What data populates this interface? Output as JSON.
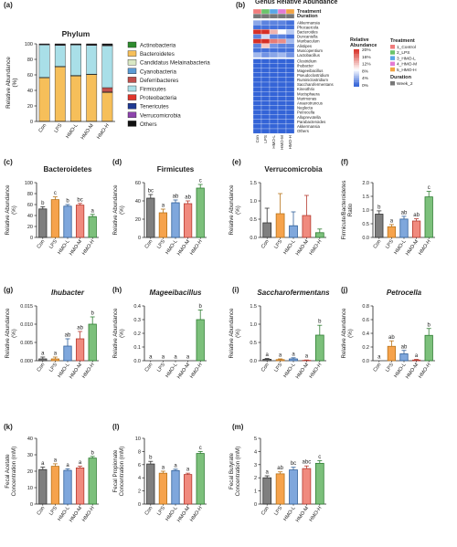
{
  "colors": {
    "groups": [
      "#7f7f7f",
      "#f6a34c",
      "#7fa7dc",
      "#f08a7e",
      "#7cc07b"
    ],
    "edges": [
      "#333333",
      "#b8741b",
      "#2f5f9a",
      "#b53b30",
      "#2e7d32"
    ]
  },
  "chart_data": [
    {
      "panel": "a",
      "id": "a",
      "type": "bar",
      "stacked": true,
      "title": "Phylum",
      "ylabel": "Relative Abundance (%)",
      "categories": [
        "Con",
        "LPS",
        "HMO-L",
        "HMO-M",
        "HMO-H"
      ],
      "ylim": [
        0,
        100
      ],
      "yticks": [
        0,
        20,
        40,
        60,
        80,
        100
      ],
      "series": [
        {
          "name": "Actinobacteria",
          "color": "#2e8b2e",
          "values": [
            0.3,
            0.3,
            0.3,
            0.3,
            0.3
          ]
        },
        {
          "name": "Bacteroidetes",
          "color": "#f6bf5a",
          "values": [
            56,
            70,
            58,
            60,
            37
          ]
        },
        {
          "name": "Candidatus Melainabacteria",
          "color": "#d9e8c4",
          "values": [
            0.3,
            0.3,
            0.3,
            0.3,
            0.3
          ]
        },
        {
          "name": "Cyanobacteria",
          "color": "#5b9bd5",
          "values": [
            0.3,
            0.3,
            0.3,
            0.3,
            0.5
          ]
        },
        {
          "name": "Deferribacteres",
          "color": "#c0504d",
          "values": [
            0.1,
            0.1,
            0.1,
            0.1,
            5.5
          ]
        },
        {
          "name": "Firmicutes",
          "color": "#a9dfe8",
          "values": [
            42,
            27,
            39,
            37,
            54
          ]
        },
        {
          "name": "Proteobacteria",
          "color": "#e0352b",
          "values": [
            0.3,
            0.3,
            0.3,
            0.3,
            0.4
          ]
        },
        {
          "name": "Tenericutes",
          "color": "#1f3a93",
          "values": [
            0.2,
            0.2,
            0.2,
            0.2,
            0.2
          ]
        },
        {
          "name": "Verrucomicrobia",
          "color": "#8e44ad",
          "values": [
            0.4,
            0.6,
            0.3,
            0.6,
            0.2
          ]
        },
        {
          "name": "Others",
          "color": "#111111",
          "values": [
            0.4,
            0.9,
            0.7,
            0.9,
            1.7
          ]
        }
      ]
    },
    {
      "panel": "b",
      "id": "b",
      "type": "heatmap",
      "title": "Genus Relative Abundance",
      "columns": [
        "Con",
        "LPS",
        "HMO-L",
        "HMO-M",
        "HMO-H"
      ],
      "annotation_rows": [
        "Treatment",
        "Duration"
      ],
      "rows_top": [
        "Akkermansia",
        "Phocaeicola",
        "Bacteroides",
        "Duncaniella",
        "Muribaculum",
        "Alistipes",
        "Muscopentium",
        "Lactobacillus"
      ],
      "rows_bottom": [
        "Clostridium",
        "Ihubacter",
        "Mageeibacillus",
        "Pseudoclostridium",
        "Ruminiclostridium",
        "Saccharofermentans",
        "Kineothrix",
        "Mucisphaera",
        "Murimonas",
        "Anaerotruncus",
        "Neglecta",
        "Petrocella",
        "Alloprevotella",
        "Parabacteroides",
        "Akkermansia",
        "Others"
      ],
      "values_top": [
        [
          4,
          2,
          2,
          2,
          1
        ],
        [
          1,
          1,
          1,
          1,
          1
        ],
        [
          22,
          20,
          13,
          9,
          6
        ],
        [
          2,
          7,
          2,
          2,
          1
        ],
        [
          21,
          24,
          16,
          15,
          5
        ],
        [
          2,
          12,
          3,
          2,
          2
        ],
        [
          1,
          1,
          1,
          1,
          1
        ],
        [
          5,
          3,
          4,
          5,
          3
        ]
      ],
      "color_scale": {
        "label": "Relative Abundance",
        "ticks": [
          "20%",
          "16%",
          "12%",
          "8%",
          "4%",
          "0%"
        ],
        "min": 0,
        "max": 20,
        "low": "#2d5fd6",
        "mid": "#ffffff",
        "high": "#d73027"
      },
      "legend_treatment": {
        "title": "Treatment",
        "items": [
          "1_Control",
          "2_LPS",
          "3_HMO-L",
          "4_HMO-M",
          "5_HMO-H"
        ],
        "colors": [
          "#f07c7c",
          "#6bc46b",
          "#5aa7e6",
          "#e47bd3",
          "#f2a444"
        ]
      },
      "legend_duration": {
        "title": "Duration",
        "items": [
          "Week_2"
        ],
        "colors": [
          "#777777"
        ]
      }
    },
    {
      "panel": "c",
      "id": "c",
      "type": "bar",
      "title": "Bacteroidetes",
      "title_italic": false,
      "ylabel": "Relative Abundance (%)",
      "categories": [
        "Con",
        "LPS",
        "HMO-L",
        "HMO-M",
        "HMO-H"
      ],
      "values": [
        52,
        69,
        57,
        59,
        38
      ],
      "errors": [
        4,
        5,
        3,
        3,
        4
      ],
      "letters": [
        "b",
        "c",
        "b",
        "bc",
        "a"
      ],
      "ylim": [
        0,
        100
      ],
      "yticks": [
        0,
        20,
        40,
        60,
        80,
        100
      ],
      "yticklabels": [
        "0",
        "20",
        "40",
        "60",
        "80",
        "100"
      ]
    },
    {
      "panel": "d",
      "id": "d",
      "type": "bar",
      "title": "Firmicutes",
      "title_italic": false,
      "ylabel": "Relative Abundance (%)",
      "categories": [
        "Con",
        "LPS",
        "HMO-L",
        "HMO-M",
        "HMO-H"
      ],
      "values": [
        43,
        27,
        38,
        37,
        54
      ],
      "errors": [
        4,
        4,
        3,
        3,
        4
      ],
      "letters": [
        "bc",
        "a",
        "ab",
        "ab",
        "c"
      ],
      "ylim": [
        0,
        60
      ],
      "yticks": [
        0,
        20,
        40,
        60
      ],
      "yticklabels": [
        "0",
        "20",
        "40",
        "60"
      ]
    },
    {
      "panel": "e",
      "id": "e",
      "type": "bar",
      "title": "Verrucomicrobia",
      "title_italic": false,
      "ylabel": "Relative Abundance (%)",
      "categories": [
        "Con",
        "LPS",
        "HMO-L",
        "HMO-M",
        "HMO-H"
      ],
      "values": [
        0.4,
        0.65,
        0.32,
        0.6,
        0.13
      ],
      "errors": [
        0.4,
        0.55,
        0.38,
        0.55,
        0.1
      ],
      "letters": [
        "",
        "",
        "",
        "",
        ""
      ],
      "ylim": [
        0,
        1.5
      ],
      "yticks": [
        0,
        0.5,
        1.0,
        1.5
      ],
      "yticklabels": [
        "0.0",
        "0.5",
        "1.0",
        "1.5"
      ]
    },
    {
      "panel": "f",
      "id": "f",
      "type": "bar",
      "title": "",
      "title_italic": false,
      "ylabel": "Firmicute/Bacteroidetes Ratio",
      "categories": [
        "Con",
        "LPS",
        "HMO-L",
        "HMO-M",
        "HMO-H"
      ],
      "values": [
        0.85,
        0.39,
        0.67,
        0.6,
        1.48
      ],
      "errors": [
        0.12,
        0.08,
        0.1,
        0.08,
        0.2
      ],
      "letters": [
        "b",
        "a",
        "ab",
        "ab",
        "c"
      ],
      "ylim": [
        0,
        2.0
      ],
      "yticks": [
        0,
        0.5,
        1.0,
        1.5,
        2.0
      ],
      "yticklabels": [
        "0.0",
        "0.5",
        "1.0",
        "1.5",
        "2.0"
      ]
    },
    {
      "panel": "g",
      "id": "g",
      "type": "bar",
      "title": "Ihubacter",
      "title_italic": true,
      "ylabel": "Relative Abundance (%)",
      "categories": [
        "Con",
        "LPS",
        "HMO-L",
        "HMO-M",
        "HMO-H"
      ],
      "values": [
        0.0005,
        0.0005,
        0.004,
        0.006,
        0.01
      ],
      "errors": [
        0.0005,
        0.0005,
        0.002,
        0.002,
        0.002
      ],
      "letters": [
        "a",
        "a",
        "ab",
        "ab",
        "b"
      ],
      "ylim": [
        0,
        0.015
      ],
      "yticks": [
        0,
        0.005,
        0.01,
        0.015
      ],
      "yticklabels": [
        "0.000",
        "0.005",
        "0.010",
        "0.015"
      ]
    },
    {
      "panel": "h",
      "id": "h",
      "type": "bar",
      "title": "Mageeibacillus",
      "title_italic": true,
      "ylabel": "Relative Abundance (%)",
      "categories": [
        "Con",
        "LPS",
        "HMO-L",
        "HMO-M",
        "HMO-H"
      ],
      "values": [
        0,
        0,
        0,
        0,
        0.3
      ],
      "errors": [
        0,
        0,
        0,
        0,
        0.07
      ],
      "letters": [
        "a",
        "a",
        "a",
        "a",
        "b"
      ],
      "ylim": [
        0,
        0.4
      ],
      "yticks": [
        0,
        0.1,
        0.2,
        0.3,
        0.4
      ],
      "yticklabels": [
        "0.0",
        "0.1",
        "0.2",
        "0.3",
        "0.4"
      ]
    },
    {
      "panel": "i",
      "id": "i",
      "type": "bar",
      "title": "Saccharofermentans",
      "title_italic": true,
      "ylabel": "Relative Abundance (%)",
      "categories": [
        "Con",
        "LPS",
        "HMO-L",
        "HMO-M",
        "HMO-H"
      ],
      "values": [
        0.04,
        0.03,
        0.05,
        0.01,
        0.7
      ],
      "errors": [
        0.02,
        0.02,
        0.03,
        0.01,
        0.27
      ],
      "letters": [
        "a",
        "a",
        "a",
        "a",
        "b"
      ],
      "ylim": [
        0,
        1.5
      ],
      "yticks": [
        0,
        0.5,
        1.0,
        1.5
      ],
      "yticklabels": [
        "0.0",
        "0.5",
        "1.0",
        "1.5"
      ]
    },
    {
      "panel": "j",
      "id": "j",
      "type": "bar",
      "title": "Petrocella",
      "title_italic": true,
      "ylabel": "Relative Abundance (%)",
      "categories": [
        "Con",
        "LPS",
        "HMO-L",
        "HMO-M",
        "HMO-H"
      ],
      "values": [
        0,
        0.21,
        0.1,
        0.01,
        0.37
      ],
      "errors": [
        0,
        0.08,
        0.05,
        0.01,
        0.1
      ],
      "letters": [
        "a",
        "ab",
        "ab",
        "a",
        "b"
      ],
      "ylim": [
        0,
        0.8
      ],
      "yticks": [
        0,
        0.2,
        0.4,
        0.6,
        0.8
      ],
      "yticklabels": [
        "0.0",
        "0.2",
        "0.4",
        "0.6",
        "0.8"
      ]
    },
    {
      "panel": "k",
      "id": "k",
      "type": "bar",
      "title": "",
      "title_italic": false,
      "ylabel": "Fecal Acetate Concentration (mM)",
      "categories": [
        "Con",
        "LPS",
        "HMO-L",
        "HMO-M",
        "HMO-H"
      ],
      "values": [
        21,
        23,
        20.5,
        22,
        28
      ],
      "errors": [
        1.5,
        1.5,
        1,
        1,
        1
      ],
      "letters": [
        "a",
        "a",
        "a",
        "a",
        "b"
      ],
      "ylim": [
        0,
        40
      ],
      "yticks": [
        0,
        10,
        20,
        30,
        40
      ],
      "yticklabels": [
        "0",
        "10",
        "20",
        "30",
        "40"
      ]
    },
    {
      "panel": "l",
      "id": "l",
      "type": "bar",
      "title": "",
      "title_italic": false,
      "ylabel": "Fecal Propionate Concentration (mM)",
      "categories": [
        "Con",
        "LPS",
        "HMO-L",
        "HMO-M",
        "HMO-H"
      ],
      "values": [
        6.1,
        4.7,
        5.1,
        4.5,
        7.7
      ],
      "errors": [
        0.4,
        0.3,
        0.2,
        0.2,
        0.3
      ],
      "letters": [
        "b",
        "a",
        "a",
        "a",
        "c"
      ],
      "ylim": [
        0,
        10
      ],
      "yticks": [
        0,
        2,
        4,
        6,
        8,
        10
      ],
      "yticklabels": [
        "0",
        "2",
        "4",
        "6",
        "8",
        "10"
      ]
    },
    {
      "panel": "m",
      "id": "m",
      "type": "bar",
      "title": "",
      "title_italic": false,
      "ylabel": "Fecal Butyrate Concentration (mM)",
      "categories": [
        "Con",
        "LPS",
        "HMO-L",
        "HMO-M",
        "HMO-H"
      ],
      "values": [
        2.0,
        2.3,
        2.6,
        2.7,
        3.1
      ],
      "errors": [
        0.15,
        0.15,
        0.2,
        0.2,
        0.2
      ],
      "letters": [
        "a",
        "ab",
        "bc",
        "abc",
        "c"
      ],
      "ylim": [
        0,
        5
      ],
      "yticks": [
        0,
        1,
        2,
        3,
        4,
        5
      ],
      "yticklabels": [
        "0",
        "1",
        "2",
        "3",
        "4",
        "5"
      ]
    }
  ]
}
